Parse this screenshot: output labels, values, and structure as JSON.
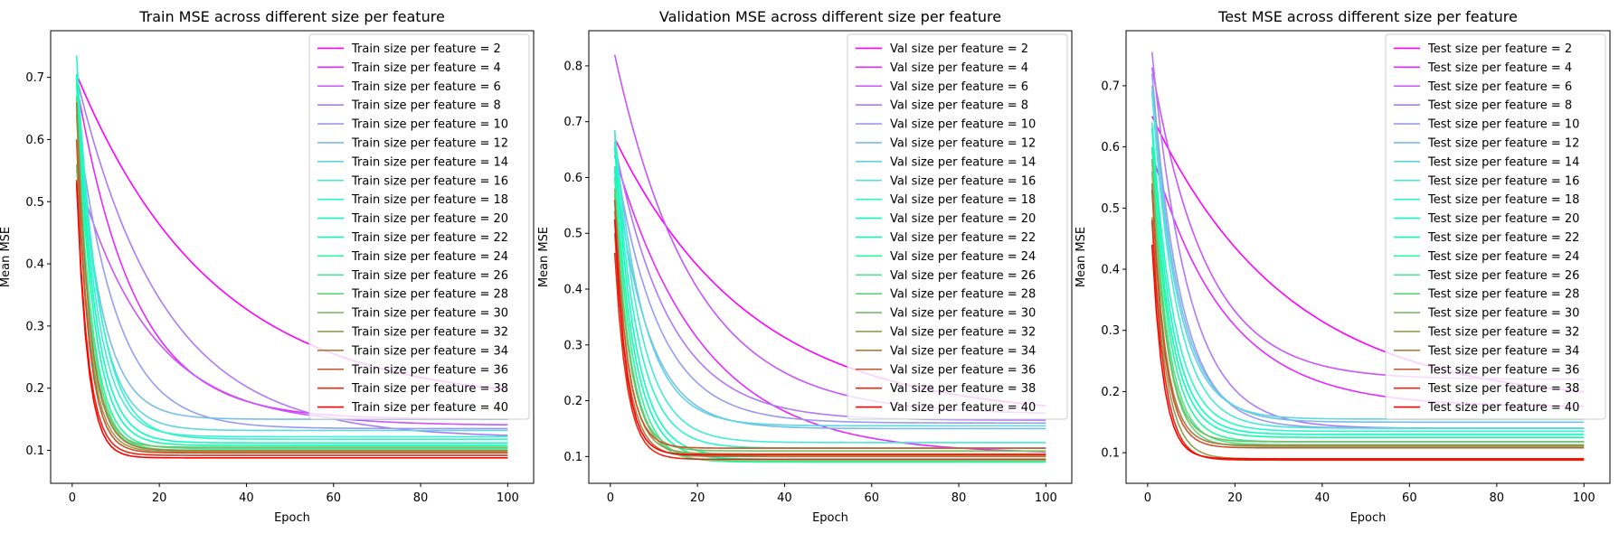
{
  "chart_data": [
    {
      "type": "line",
      "title": "Train MSE across different size per feature",
      "xlabel": "Epoch",
      "ylabel": "Mean MSE",
      "xlim": [
        -4.95,
        105.95
      ],
      "ylim": [
        0.047,
        0.775
      ],
      "xticks": [
        0,
        20,
        40,
        60,
        80,
        100
      ],
      "yticks": [
        0.1,
        0.2,
        0.3,
        0.4,
        0.5,
        0.6,
        0.7
      ],
      "legend_position": "top-right",
      "grid": false,
      "epochs": [
        1,
        100
      ],
      "series": [
        {
          "name": "Train size per feature = 2",
          "start": 0.705,
          "end": 0.175,
          "rate": 0.032
        },
        {
          "name": "Train size per feature = 4",
          "start": 0.69,
          "end": 0.15,
          "rate": 0.075
        },
        {
          "name": "Train size per feature = 6",
          "start": 0.55,
          "end": 0.14,
          "rate": 0.06
        },
        {
          "name": "Train size per feature = 8",
          "start": 0.7,
          "end": 0.12,
          "rate": 0.05
        },
        {
          "name": "Train size per feature = 10",
          "start": 0.64,
          "end": 0.135,
          "rate": 0.11
        },
        {
          "name": "Train size per feature = 12",
          "start": 0.655,
          "end": 0.15,
          "rate": 0.18
        },
        {
          "name": "Train size per feature = 14",
          "start": 0.7,
          "end": 0.132,
          "rate": 0.2
        },
        {
          "name": "Train size per feature = 16",
          "start": 0.705,
          "end": 0.122,
          "rate": 0.22
        },
        {
          "name": "Train size per feature = 18",
          "start": 0.735,
          "end": 0.118,
          "rate": 0.2
        },
        {
          "name": "Train size per feature = 20",
          "start": 0.705,
          "end": 0.112,
          "rate": 0.24
        },
        {
          "name": "Train size per feature = 22",
          "start": 0.69,
          "end": 0.108,
          "rate": 0.26
        },
        {
          "name": "Train size per feature = 24",
          "start": 0.65,
          "end": 0.103,
          "rate": 0.28
        },
        {
          "name": "Train size per feature = 26",
          "start": 0.67,
          "end": 0.1,
          "rate": 0.3
        },
        {
          "name": "Train size per feature = 28",
          "start": 0.56,
          "end": 0.1,
          "rate": 0.3
        },
        {
          "name": "Train size per feature = 30",
          "start": 0.64,
          "end": 0.105,
          "rate": 0.32
        },
        {
          "name": "Train size per feature = 32",
          "start": 0.6,
          "end": 0.098,
          "rate": 0.34
        },
        {
          "name": "Train size per feature = 34",
          "start": 0.66,
          "end": 0.1,
          "rate": 0.33
        },
        {
          "name": "Train size per feature = 36",
          "start": 0.6,
          "end": 0.096,
          "rate": 0.36
        },
        {
          "name": "Train size per feature = 38",
          "start": 0.535,
          "end": 0.092,
          "rate": 0.38
        },
        {
          "name": "Train size per feature = 40",
          "start": 0.53,
          "end": 0.088,
          "rate": 0.4
        }
      ]
    },
    {
      "type": "line",
      "title": "Validation MSE across different size per feature",
      "xlabel": "Epoch",
      "ylabel": "Mean MSE",
      "xlim": [
        -4.95,
        105.95
      ],
      "ylim": [
        0.052,
        0.863
      ],
      "xticks": [
        0,
        20,
        40,
        60,
        80,
        100
      ],
      "yticks": [
        0.1,
        0.2,
        0.3,
        0.4,
        0.5,
        0.6,
        0.7,
        0.8
      ],
      "legend_position": "top-right",
      "grid": false,
      "epochs": [
        1,
        100
      ],
      "series": [
        {
          "name": "Val size per feature = 2",
          "start": 0.67,
          "end": 0.17,
          "rate": 0.032
        },
        {
          "name": "Val size per feature = 4",
          "start": 0.64,
          "end": 0.105,
          "rate": 0.05
        },
        {
          "name": "Val size per feature = 6",
          "start": 0.82,
          "end": 0.175,
          "rate": 0.055
        },
        {
          "name": "Val size per feature = 8",
          "start": 0.66,
          "end": 0.165,
          "rate": 0.08
        },
        {
          "name": "Val size per feature = 10",
          "start": 0.64,
          "end": 0.16,
          "rate": 0.1
        },
        {
          "name": "Val size per feature = 12",
          "start": 0.62,
          "end": 0.15,
          "rate": 0.13
        },
        {
          "name": "Val size per feature = 14",
          "start": 0.68,
          "end": 0.155,
          "rate": 0.15
        },
        {
          "name": "Val size per feature = 16",
          "start": 0.685,
          "end": 0.125,
          "rate": 0.17
        },
        {
          "name": "Val size per feature = 18",
          "start": 0.665,
          "end": 0.115,
          "rate": 0.19
        },
        {
          "name": "Val size per feature = 20",
          "start": 0.655,
          "end": 0.1,
          "rate": 0.21
        },
        {
          "name": "Val size per feature = 22",
          "start": 0.615,
          "end": 0.095,
          "rate": 0.22
        },
        {
          "name": "Val size per feature = 24",
          "start": 0.6,
          "end": 0.09,
          "rate": 0.24
        },
        {
          "name": "Val size per feature = 26",
          "start": 0.57,
          "end": 0.092,
          "rate": 0.26
        },
        {
          "name": "Val size per feature = 28",
          "start": 0.56,
          "end": 0.1,
          "rate": 0.28
        },
        {
          "name": "Val size per feature = 30",
          "start": 0.58,
          "end": 0.11,
          "rate": 0.3
        },
        {
          "name": "Val size per feature = 32",
          "start": 0.54,
          "end": 0.105,
          "rate": 0.32
        },
        {
          "name": "Val size per feature = 34",
          "start": 0.5,
          "end": 0.1,
          "rate": 0.33
        },
        {
          "name": "Val size per feature = 36",
          "start": 0.56,
          "end": 0.115,
          "rate": 0.35
        },
        {
          "name": "Val size per feature = 38",
          "start": 0.465,
          "end": 0.095,
          "rate": 0.36
        },
        {
          "name": "Val size per feature = 40",
          "start": 0.525,
          "end": 0.103,
          "rate": 0.38
        }
      ]
    },
    {
      "type": "line",
      "title": "Test MSE across different size per feature",
      "xlabel": "Epoch",
      "ylabel": "Mean MSE",
      "xlim": [
        -4.95,
        105.95
      ],
      "ylim": [
        0.05,
        0.79
      ],
      "xticks": [
        0,
        20,
        40,
        60,
        80,
        100
      ],
      "yticks": [
        0.1,
        0.2,
        0.3,
        0.4,
        0.5,
        0.6,
        0.7
      ],
      "legend_position": "top-right",
      "grid": false,
      "epochs": [
        1,
        100
      ],
      "series": [
        {
          "name": "Test size per feature = 2",
          "start": 0.65,
          "end": 0.18,
          "rate": 0.032
        },
        {
          "name": "Test size per feature = 4",
          "start": 0.59,
          "end": 0.175,
          "rate": 0.06
        },
        {
          "name": "Test size per feature = 6",
          "start": 0.73,
          "end": 0.22,
          "rate": 0.08
        },
        {
          "name": "Test size per feature = 8",
          "start": 0.755,
          "end": 0.14,
          "rate": 0.12
        },
        {
          "name": "Test size per feature = 10",
          "start": 0.72,
          "end": 0.14,
          "rate": 0.15
        },
        {
          "name": "Test size per feature = 12",
          "start": 0.7,
          "end": 0.15,
          "rate": 0.16
        },
        {
          "name": "Test size per feature = 14",
          "start": 0.69,
          "end": 0.155,
          "rate": 0.17
        },
        {
          "name": "Test size per feature = 16",
          "start": 0.69,
          "end": 0.14,
          "rate": 0.18
        },
        {
          "name": "Test size per feature = 18",
          "start": 0.64,
          "end": 0.135,
          "rate": 0.2
        },
        {
          "name": "Test size per feature = 20",
          "start": 0.63,
          "end": 0.13,
          "rate": 0.22
        },
        {
          "name": "Test size per feature = 22",
          "start": 0.6,
          "end": 0.125,
          "rate": 0.23
        },
        {
          "name": "Test size per feature = 24",
          "start": 0.6,
          "end": 0.118,
          "rate": 0.25
        },
        {
          "name": "Test size per feature = 26",
          "start": 0.58,
          "end": 0.113,
          "rate": 0.27
        },
        {
          "name": "Test size per feature = 28",
          "start": 0.56,
          "end": 0.11,
          "rate": 0.29
        },
        {
          "name": "Test size per feature = 30",
          "start": 0.58,
          "end": 0.118,
          "rate": 0.3
        },
        {
          "name": "Test size per feature = 32",
          "start": 0.485,
          "end": 0.09,
          "rate": 0.32
        },
        {
          "name": "Test size per feature = 34",
          "start": 0.54,
          "end": 0.112,
          "rate": 0.33
        },
        {
          "name": "Test size per feature = 36",
          "start": 0.53,
          "end": 0.108,
          "rate": 0.34
        },
        {
          "name": "Test size per feature = 38",
          "start": 0.48,
          "end": 0.088,
          "rate": 0.36
        },
        {
          "name": "Test size per feature = 40",
          "start": 0.44,
          "end": 0.09,
          "rate": 0.38
        }
      ]
    }
  ]
}
